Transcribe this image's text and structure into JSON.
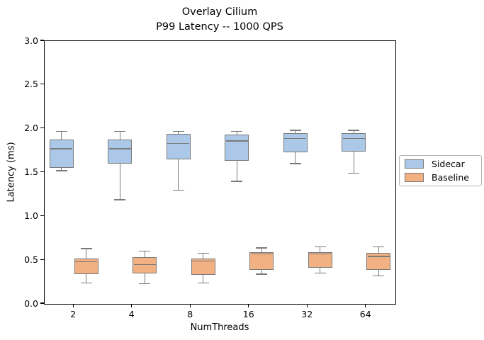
{
  "chart_data": {
    "type": "boxplot",
    "title_line1": "Overlay Cilium",
    "title_line2": "P99 Latency -- 1000 QPS",
    "xlabel": "NumThreads",
    "ylabel": "Latency (ms)",
    "ylim": [
      0.0,
      3.0
    ],
    "ytick_values": [
      0.0,
      0.5,
      1.0,
      1.5,
      2.0,
      2.5,
      3.0
    ],
    "ytick_labels": [
      "0.0",
      "0.5",
      "1.0",
      "1.5",
      "2.0",
      "2.5",
      "3.0"
    ],
    "categories": [
      "2",
      "4",
      "8",
      "16",
      "32",
      "64"
    ],
    "grid": false,
    "legend": {
      "position": "center-right-outside",
      "entries": [
        "Sidecar",
        "Baseline"
      ]
    },
    "colors": {
      "sidecar_fill": "#abc8e8",
      "baseline_fill": "#f2b183",
      "box_edge": "#7a7a7a",
      "spine": "#000000",
      "background": "#ffffff"
    },
    "series": [
      {
        "name": "Sidecar",
        "fill": "#abc8e8",
        "boxes": [
          {
            "category": "2",
            "whislo": 1.52,
            "q1": 1.55,
            "med": 1.77,
            "q3": 1.88,
            "whishi": 1.97
          },
          {
            "category": "4",
            "whislo": 1.19,
            "q1": 1.6,
            "med": 1.77,
            "q3": 1.88,
            "whishi": 1.97
          },
          {
            "category": "8",
            "whislo": 1.3,
            "q1": 1.65,
            "med": 1.83,
            "q3": 1.94,
            "whishi": 1.97
          },
          {
            "category": "16",
            "whislo": 1.4,
            "q1": 1.63,
            "med": 1.86,
            "q3": 1.93,
            "whishi": 1.97
          },
          {
            "category": "32",
            "whislo": 1.6,
            "q1": 1.73,
            "med": 1.89,
            "q3": 1.95,
            "whishi": 1.98
          },
          {
            "category": "64",
            "whislo": 1.49,
            "q1": 1.74,
            "med": 1.89,
            "q3": 1.95,
            "whishi": 1.98
          }
        ]
      },
      {
        "name": "Baseline",
        "fill": "#f2b183",
        "boxes": [
          {
            "category": "2",
            "whislo": 0.24,
            "q1": 0.34,
            "med": 0.48,
            "q3": 0.52,
            "whishi": 0.63
          },
          {
            "category": "4",
            "whislo": 0.23,
            "q1": 0.35,
            "med": 0.45,
            "q3": 0.53,
            "whishi": 0.6
          },
          {
            "category": "8",
            "whislo": 0.24,
            "q1": 0.33,
            "med": 0.49,
            "q3": 0.52,
            "whishi": 0.58
          },
          {
            "category": "16",
            "whislo": 0.34,
            "q1": 0.39,
            "med": 0.57,
            "q3": 0.59,
            "whishi": 0.64
          },
          {
            "category": "32",
            "whislo": 0.35,
            "q1": 0.41,
            "med": 0.57,
            "q3": 0.59,
            "whishi": 0.65
          },
          {
            "category": "64",
            "whislo": 0.32,
            "q1": 0.39,
            "med": 0.54,
            "q3": 0.58,
            "whishi": 0.65
          }
        ]
      }
    ]
  }
}
